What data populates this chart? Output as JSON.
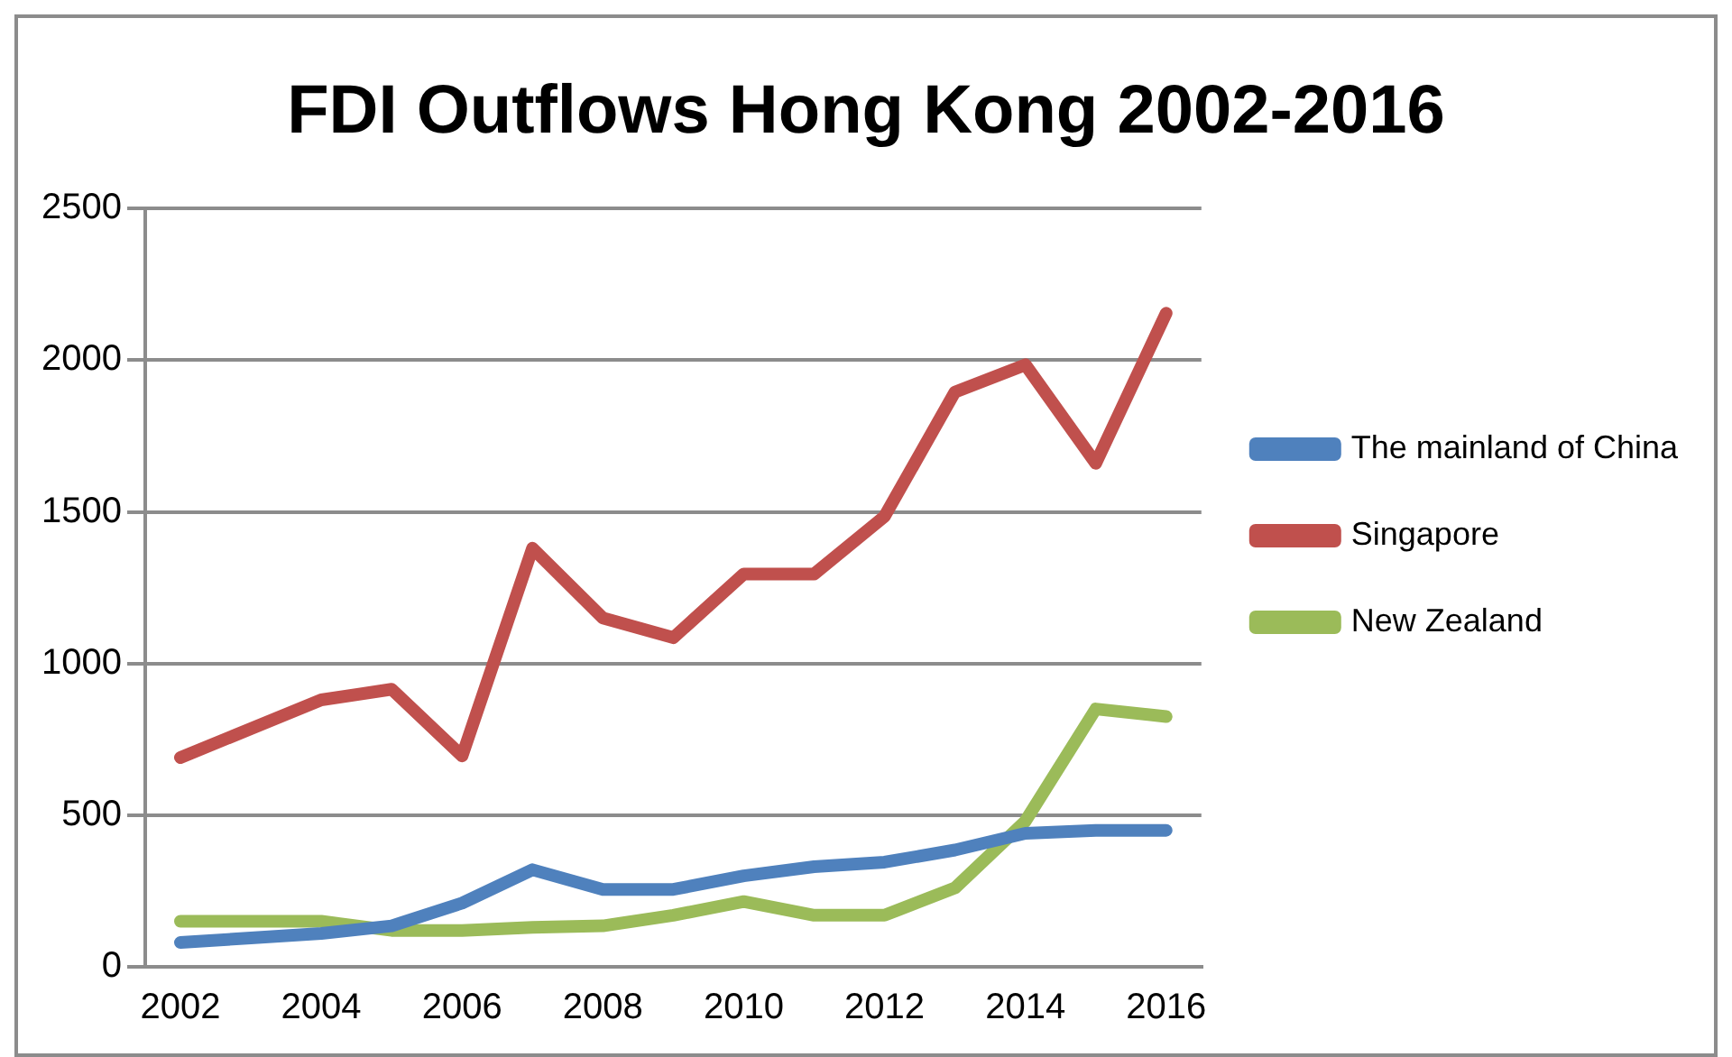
{
  "chart_data": {
    "type": "line",
    "title": "FDI Outflows Hong Kong 2002-2016",
    "categories": [
      "2002",
      null,
      "2004",
      null,
      "2006",
      null,
      "2008",
      null,
      "2010",
      null,
      "2012",
      null,
      "2014",
      null,
      "2016"
    ],
    "series": [
      {
        "name": "The mainland of China",
        "color": "#4f81bd",
        "values": [
          80,
          95,
          110,
          135,
          210,
          320,
          255,
          255,
          300,
          330,
          345,
          385,
          440,
          450,
          450
        ]
      },
      {
        "name": "Singapore",
        "color": "#c0504d",
        "values": [
          690,
          785,
          880,
          915,
          695,
          1380,
          1150,
          1085,
          1295,
          1295,
          1485,
          1895,
          1985,
          1660,
          2155
        ]
      },
      {
        "name": "New Zealand",
        "color": "#9bbb59",
        "values": [
          150,
          150,
          150,
          120,
          120,
          130,
          135,
          170,
          215,
          170,
          170,
          260,
          480,
          850,
          825
        ]
      }
    ],
    "ylim": [
      0,
      2500
    ],
    "yticks": [
      0,
      500,
      1000,
      1500,
      2000,
      2500
    ],
    "grid": "y",
    "legend": "right",
    "marker": "none",
    "line_style": "solid"
  }
}
